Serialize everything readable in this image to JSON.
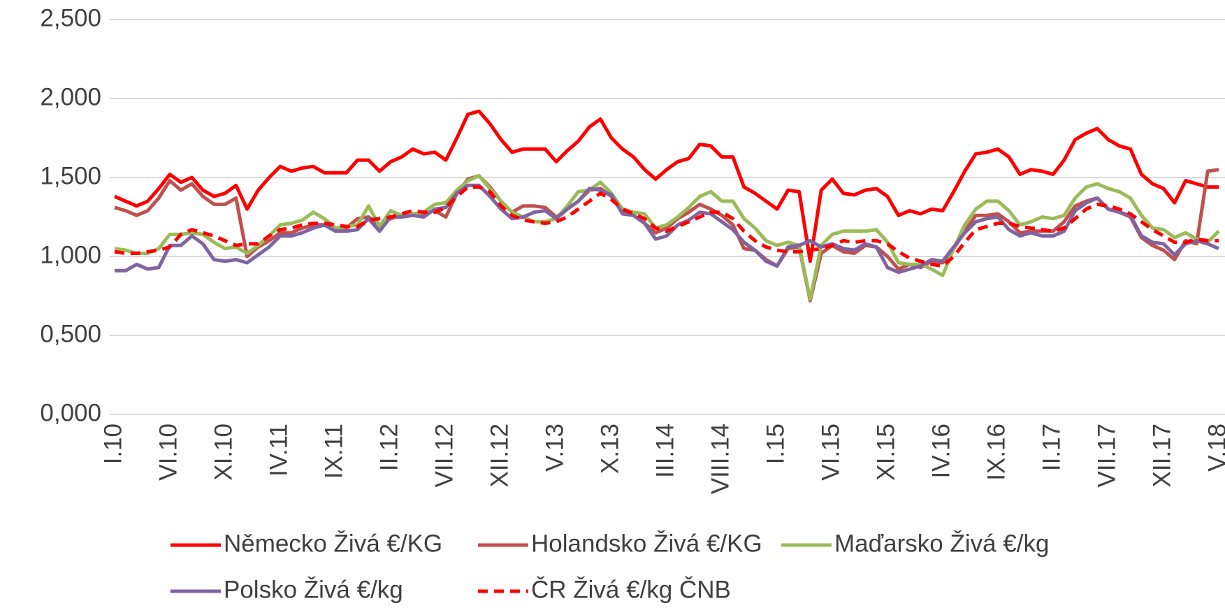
{
  "chart_data": {
    "type": "line",
    "categories": [
      "I.10",
      null,
      null,
      null,
      null,
      "VI.10",
      null,
      null,
      null,
      null,
      "XI.10",
      null,
      null,
      null,
      null,
      "IV.11",
      null,
      null,
      null,
      null,
      "IX.11",
      null,
      null,
      null,
      null,
      "II.12",
      null,
      null,
      null,
      null,
      "VII.12",
      null,
      null,
      null,
      null,
      "XII.12",
      null,
      null,
      null,
      null,
      "V.13",
      null,
      null,
      null,
      null,
      "X.13",
      null,
      null,
      null,
      null,
      "III.14",
      null,
      null,
      null,
      null,
      "VIII.14",
      null,
      null,
      null,
      null,
      "I.15",
      null,
      null,
      null,
      null,
      "VI.15",
      null,
      null,
      null,
      null,
      "XI.15",
      null,
      null,
      null,
      null,
      "IV.16",
      null,
      null,
      null,
      null,
      "IX.16",
      null,
      null,
      null,
      null,
      "II.17",
      null,
      null,
      null,
      null,
      "VII.17",
      null,
      null,
      null,
      null,
      "XII.17",
      null,
      null,
      null,
      null,
      "V.18"
    ],
    "ylim": [
      0,
      2.5
    ],
    "yticks": [
      {
        "value": 0,
        "label": "0,000"
      },
      {
        "value": 0.5,
        "label": "0,500"
      },
      {
        "value": 1,
        "label": "1,000"
      },
      {
        "value": 1.5,
        "label": "1,500"
      },
      {
        "value": 2,
        "label": "2,000"
      },
      {
        "value": 2.5,
        "label": "2,500"
      }
    ],
    "grid": true,
    "legend": "bottom",
    "series": [
      {
        "name": "Německo Živá €/KG",
        "color": "#ff0000",
        "dash": "solid",
        "values": [
          1.38,
          1.35,
          1.32,
          1.35,
          1.43,
          1.52,
          1.47,
          1.5,
          1.42,
          1.38,
          1.4,
          1.45,
          1.3,
          1.42,
          1.5,
          1.57,
          1.54,
          1.56,
          1.57,
          1.53,
          1.53,
          1.53,
          1.61,
          1.61,
          1.54,
          1.6,
          1.63,
          1.68,
          1.65,
          1.66,
          1.61,
          1.75,
          1.9,
          1.92,
          1.84,
          1.74,
          1.66,
          1.68,
          1.68,
          1.68,
          1.6,
          1.67,
          1.73,
          1.82,
          1.87,
          1.75,
          1.68,
          1.63,
          1.55,
          1.49,
          1.55,
          1.6,
          1.62,
          1.71,
          1.7,
          1.63,
          1.63,
          1.44,
          1.4,
          1.35,
          1.3,
          1.42,
          1.41,
          0.97,
          1.42,
          1.49,
          1.4,
          1.39,
          1.42,
          1.43,
          1.38,
          1.26,
          1.29,
          1.27,
          1.3,
          1.29,
          1.41,
          1.54,
          1.65,
          1.66,
          1.68,
          1.63,
          1.52,
          1.55,
          1.54,
          1.52,
          1.61,
          1.74,
          1.78,
          1.81,
          1.74,
          1.7,
          1.68,
          1.52,
          1.46,
          1.43,
          1.34,
          1.48,
          1.46,
          1.44,
          1.44
        ]
      },
      {
        "name": "Holandsko Živá €/KG",
        "color": "#c0504d",
        "dash": "solid",
        "values": [
          1.31,
          1.29,
          1.26,
          1.29,
          1.37,
          1.48,
          1.42,
          1.46,
          1.38,
          1.33,
          1.33,
          1.37,
          1.0,
          1.06,
          1.1,
          1.15,
          1.15,
          1.18,
          1.2,
          1.2,
          1.18,
          1.18,
          1.24,
          1.25,
          1.2,
          1.24,
          1.26,
          1.27,
          1.27,
          1.29,
          1.25,
          1.4,
          1.49,
          1.51,
          1.44,
          1.35,
          1.28,
          1.32,
          1.32,
          1.31,
          1.25,
          1.3,
          1.35,
          1.42,
          1.43,
          1.38,
          1.28,
          1.26,
          1.21,
          1.15,
          1.18,
          1.24,
          1.28,
          1.33,
          1.3,
          1.26,
          1.2,
          1.05,
          1.04,
          0.98,
          0.94,
          1.05,
          1.06,
          0.72,
          1.02,
          1.07,
          1.03,
          1.02,
          1.07,
          1.06,
          1.0,
          0.92,
          0.95,
          0.93,
          0.97,
          0.96,
          1.05,
          1.16,
          1.26,
          1.26,
          1.27,
          1.22,
          1.15,
          1.16,
          1.16,
          1.16,
          1.22,
          1.32,
          1.35,
          1.37,
          1.3,
          1.28,
          1.25,
          1.12,
          1.07,
          1.04,
          0.98,
          1.1,
          1.08,
          1.54,
          1.55
        ]
      },
      {
        "name": "Maďarsko Živá €/kg",
        "color": "#9bbb59",
        "dash": "solid",
        "values": [
          1.05,
          1.04,
          1.02,
          1.02,
          1.05,
          1.14,
          1.14,
          1.15,
          1.14,
          1.09,
          1.05,
          1.06,
          1.02,
          1.07,
          1.13,
          1.2,
          1.21,
          1.23,
          1.28,
          1.24,
          1.18,
          1.19,
          1.2,
          1.32,
          1.19,
          1.29,
          1.26,
          1.27,
          1.28,
          1.33,
          1.34,
          1.42,
          1.48,
          1.51,
          1.43,
          1.35,
          1.28,
          1.25,
          1.22,
          1.22,
          1.24,
          1.32,
          1.41,
          1.42,
          1.47,
          1.4,
          1.3,
          1.28,
          1.27,
          1.18,
          1.2,
          1.25,
          1.31,
          1.38,
          1.41,
          1.35,
          1.35,
          1.24,
          1.18,
          1.1,
          1.07,
          1.09,
          1.07,
          0.73,
          1.07,
          1.14,
          1.16,
          1.16,
          1.16,
          1.17,
          1.09,
          0.96,
          0.95,
          0.95,
          0.92,
          0.88,
          1.05,
          1.2,
          1.3,
          1.35,
          1.35,
          1.29,
          1.2,
          1.22,
          1.25,
          1.24,
          1.26,
          1.37,
          1.44,
          1.46,
          1.43,
          1.41,
          1.37,
          1.26,
          1.18,
          1.17,
          1.12,
          1.15,
          1.11,
          1.09,
          1.16
        ]
      },
      {
        "name": "Polsko Živá €/kg",
        "color": "#8064a2",
        "dash": "solid",
        "values": [
          0.91,
          0.91,
          0.95,
          0.92,
          0.93,
          1.07,
          1.07,
          1.13,
          1.08,
          0.98,
          0.97,
          0.98,
          0.96,
          1.01,
          1.06,
          1.13,
          1.13,
          1.15,
          1.18,
          1.2,
          1.16,
          1.16,
          1.17,
          1.24,
          1.16,
          1.25,
          1.25,
          1.26,
          1.25,
          1.3,
          1.31,
          1.4,
          1.45,
          1.45,
          1.38,
          1.3,
          1.24,
          1.25,
          1.28,
          1.29,
          1.24,
          1.3,
          1.35,
          1.43,
          1.42,
          1.39,
          1.27,
          1.26,
          1.21,
          1.11,
          1.13,
          1.2,
          1.23,
          1.28,
          1.27,
          1.22,
          1.17,
          1.09,
          1.04,
          0.97,
          0.94,
          1.06,
          1.07,
          1.1,
          1.06,
          1.08,
          1.05,
          1.04,
          1.08,
          1.06,
          0.93,
          0.9,
          0.92,
          0.94,
          0.98,
          0.97,
          1.06,
          1.15,
          1.22,
          1.24,
          1.25,
          1.17,
          1.13,
          1.15,
          1.13,
          1.13,
          1.16,
          1.29,
          1.34,
          1.37,
          1.3,
          1.28,
          1.26,
          1.13,
          1.09,
          1.08,
          1.01,
          1.08,
          1.1,
          1.08,
          1.05
        ]
      },
      {
        "name": "ČR Živá €/kg ČNB",
        "color": "#ff0000",
        "dash": "dashed",
        "values": [
          1.03,
          1.02,
          1.02,
          1.03,
          1.04,
          1.06,
          1.14,
          1.17,
          1.15,
          1.13,
          1.1,
          1.07,
          1.08,
          1.08,
          1.13,
          1.17,
          1.18,
          1.2,
          1.21,
          1.21,
          1.2,
          1.19,
          1.19,
          1.23,
          1.24,
          1.25,
          1.27,
          1.29,
          1.28,
          1.28,
          1.31,
          1.38,
          1.44,
          1.44,
          1.41,
          1.32,
          1.26,
          1.23,
          1.22,
          1.21,
          1.22,
          1.25,
          1.3,
          1.35,
          1.4,
          1.36,
          1.3,
          1.27,
          1.24,
          1.18,
          1.16,
          1.19,
          1.22,
          1.25,
          1.28,
          1.28,
          1.24,
          1.16,
          1.1,
          1.06,
          1.04,
          1.03,
          1.03,
          1.04,
          1.05,
          1.07,
          1.1,
          1.09,
          1.1,
          1.1,
          1.08,
          1.03,
          0.99,
          0.97,
          0.95,
          0.94,
          1.0,
          1.09,
          1.17,
          1.19,
          1.21,
          1.21,
          1.19,
          1.18,
          1.17,
          1.16,
          1.18,
          1.24,
          1.3,
          1.33,
          1.32,
          1.3,
          1.27,
          1.22,
          1.17,
          1.13,
          1.09,
          1.09,
          1.11,
          1.1,
          1.1
        ]
      }
    ]
  }
}
